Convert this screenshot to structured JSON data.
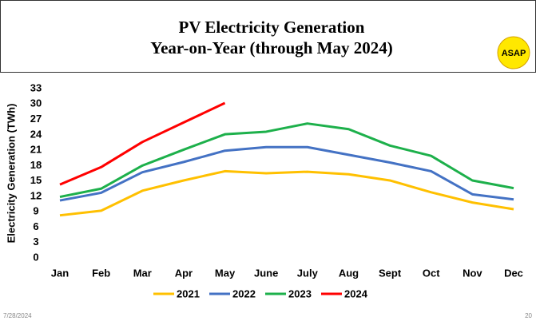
{
  "slide": {
    "logo": "ASAP",
    "date": "7/28/2024",
    "page_number": 20
  },
  "chart_data": {
    "type": "line",
    "title": "PV Electricity Generation",
    "subtitle": "Year-on-Year (through May 2024)",
    "y_label": "Electricity Generation (TWh)",
    "categories": [
      "Jan",
      "Feb",
      "Mar",
      "Apr",
      "May",
      "June",
      "July",
      "Aug",
      "Sept",
      "Oct",
      "Nov",
      "Dec"
    ],
    "series": [
      {
        "name": "2021",
        "color": "#ffc000",
        "values": [
          8.3,
          9.2,
          13.1,
          15.1,
          16.9,
          16.5,
          16.8,
          16.3,
          15.1,
          12.8,
          10.8,
          9.5
        ]
      },
      {
        "name": "2022",
        "color": "#4472c4",
        "values": [
          11.2,
          12.7,
          16.7,
          18.7,
          20.9,
          21.6,
          21.6,
          20.1,
          18.6,
          16.9,
          12.4,
          11.4
        ]
      },
      {
        "name": "2023",
        "color": "#1db04b",
        "values": [
          11.9,
          13.5,
          18.0,
          21.1,
          24.1,
          24.6,
          26.2,
          25.1,
          21.9,
          19.9,
          15.1,
          13.6
        ]
      },
      {
        "name": "2024",
        "color": "#ff0000",
        "values": [
          14.3,
          17.7,
          22.6,
          26.4,
          30.2,
          null,
          null,
          null,
          null,
          null,
          null,
          null
        ]
      }
    ],
    "ylim": [
      0,
      33
    ],
    "yticks": [
      0,
      3,
      6,
      9,
      12,
      15,
      18,
      21,
      24,
      27,
      30,
      33
    ],
    "grid": false,
    "legend": "bottom"
  }
}
